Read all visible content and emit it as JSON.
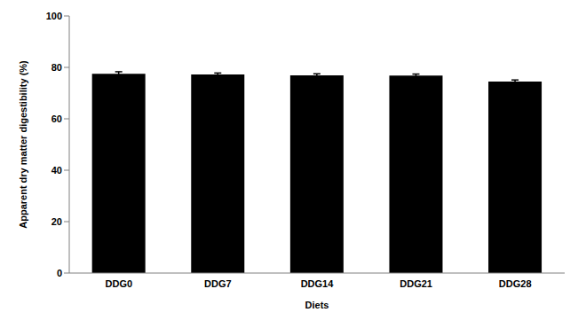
{
  "chart_data": {
    "type": "bar",
    "x_label": "Diets",
    "y_label": "Apparent dry matter digestibility (%)",
    "categories": [
      "DDG0",
      "DDG7",
      "DDG14",
      "DDG21",
      "DDG28"
    ],
    "values": [
      77.5,
      77.2,
      76.9,
      76.8,
      74.5
    ],
    "errors": [
      0.8,
      0.6,
      0.6,
      0.6,
      0.6
    ],
    "color": "#000000",
    "ylim": [
      0,
      100
    ],
    "yticks": [
      0,
      20,
      40,
      60,
      80,
      100
    ],
    "grid": false
  }
}
